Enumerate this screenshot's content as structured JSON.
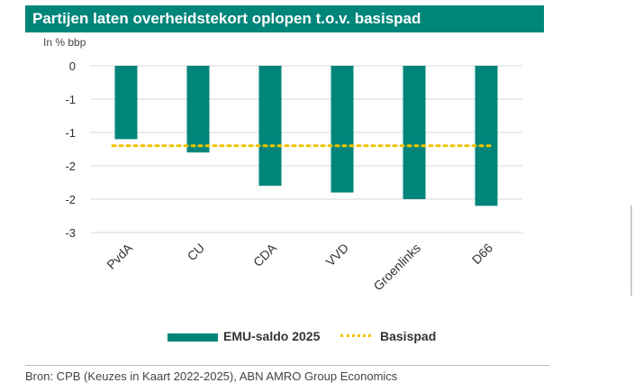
{
  "chart_data": {
    "type": "bar",
    "title": "Partijen laten overheidstekort oplopen t.o.v. basispad",
    "ylabel": "In % bbp",
    "categories": [
      "PvdA",
      "CU",
      "CDA",
      "VVD",
      "Groenlinks",
      "D66"
    ],
    "series": [
      {
        "name": "EMU-saldo 2025",
        "values": [
          -1.1,
          -1.3,
          -1.8,
          -1.9,
          -2.0,
          -2.1
        ],
        "color": "#00857a"
      },
      {
        "name": "Basispad",
        "values": [
          -1.2,
          -1.2,
          -1.2,
          -1.2,
          -1.2,
          -1.2
        ],
        "color": "#f2c200",
        "style": "dotted-line"
      }
    ],
    "y_ticks": [
      "0",
      "-1",
      "-1",
      "-2",
      "-2",
      "-3"
    ],
    "ylim": [
      -2.5,
      0
    ],
    "grid": true,
    "legend_position": "bottom"
  },
  "source": "Bron: CPB (Keuzes in Kaart 2022-2025), ABN AMRO Group Economics"
}
